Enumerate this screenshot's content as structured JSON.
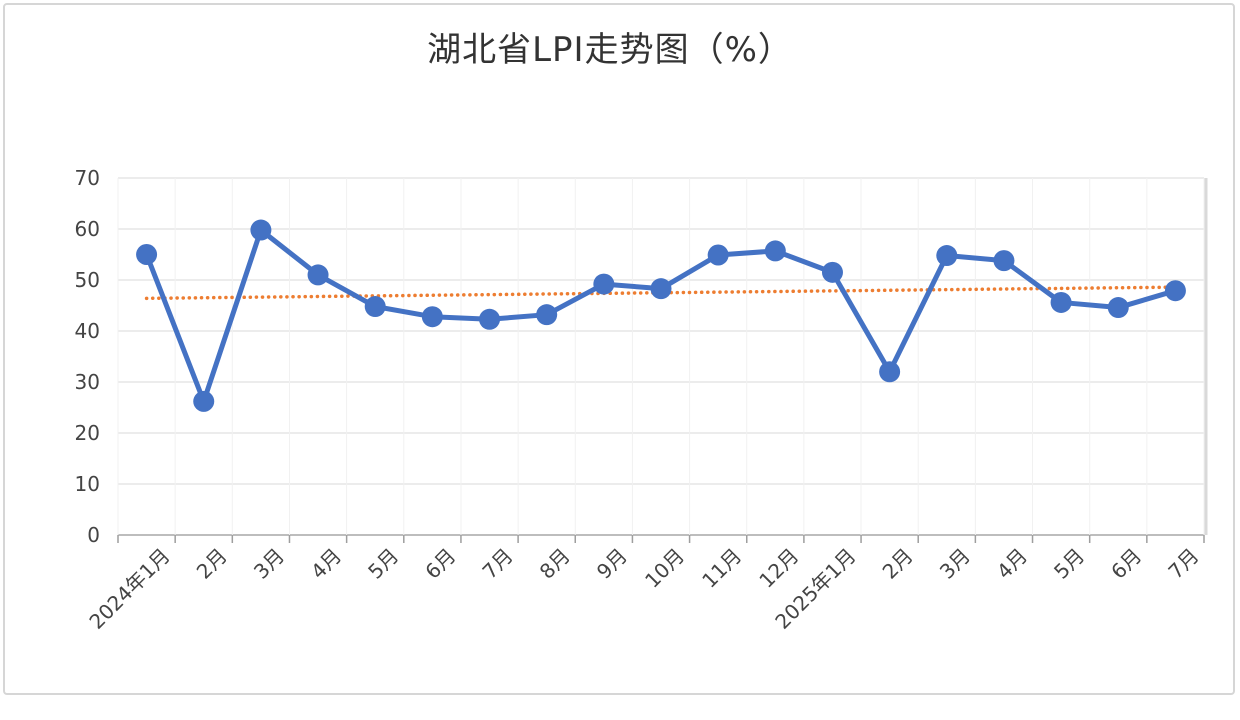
{
  "chart_data": {
    "type": "line",
    "title": "湖北省LPI走势图（%）",
    "categories": [
      "2024年1月",
      "2月",
      "3月",
      "4月",
      "5月",
      "6月",
      "7月",
      "8月",
      "9月",
      "10月",
      "11月",
      "12月",
      "2025年1月",
      "2月",
      "3月",
      "4月",
      "5月",
      "6月",
      "7月"
    ],
    "series": [
      {
        "color": "#4472c4",
        "values": [
          55.0,
          26.2,
          59.8,
          51.0,
          44.8,
          42.8,
          42.3,
          43.2,
          49.2,
          48.3,
          54.9,
          55.7,
          51.5,
          32.0,
          54.8,
          53.8,
          45.6,
          44.6,
          47.9
        ]
      }
    ],
    "trendline": {
      "type": "linear",
      "color": "#ed7d31",
      "start": 46.4,
      "end": 48.6
    },
    "yticks": [
      "0",
      "10",
      "20",
      "30",
      "40",
      "50",
      "60",
      "70"
    ],
    "ylim": [
      0,
      70
    ],
    "grid": true,
    "legend": "none",
    "colors": {
      "title": "#333333",
      "axis": "#444444",
      "grid": "#e6e6e6"
    }
  }
}
